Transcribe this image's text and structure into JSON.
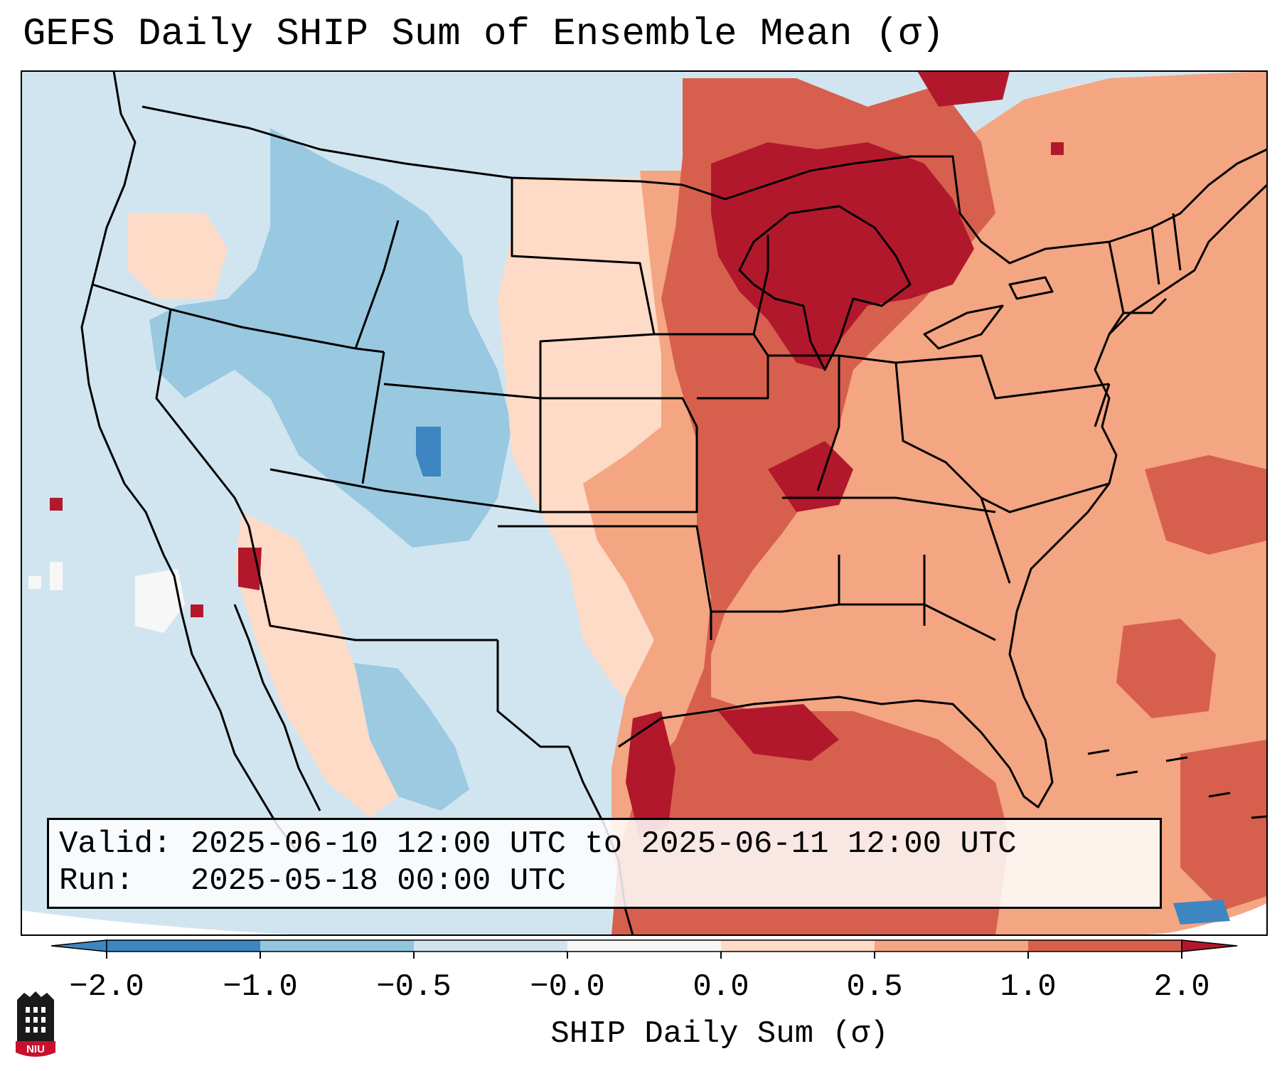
{
  "title": "GEFS Daily SHIP Sum of Ensemble Mean (σ)",
  "info": {
    "valid_label": "Valid:",
    "valid_value": "2025-06-10 12:00 UTC to 2025-06-11 12:00 UTC",
    "run_label": "Run:",
    "run_value": "2025-05-18 00:00 UTC"
  },
  "colorbar": {
    "label": "SHIP Daily Sum (σ)",
    "ticks": [
      "−2.0",
      "−1.0",
      "−0.5",
      "−0.0",
      "0.0",
      "0.5",
      "1.0",
      "2.0"
    ],
    "bin_colors": [
      "#3d86c2",
      "#92c5de",
      "#d1e5f0",
      "#f7f7f7",
      "#fddbc7",
      "#f4a582",
      "#d6604d",
      "#b2182b"
    ],
    "extend": "both"
  },
  "logo_text": "NIU",
  "colors": {
    "ocean_base": "#d1e5f0",
    "strong_negative": "#3d86c2",
    "moderate_negative": "#92c5de",
    "weak_negative": "#d1e5f0",
    "neutral": "#f7f7f7",
    "weak_positive": "#fddbc7",
    "moderate_positive": "#f4a582",
    "strong_positive": "#d6604d",
    "very_strong_positive": "#b2182b",
    "niu_red": "#c8102e"
  }
}
